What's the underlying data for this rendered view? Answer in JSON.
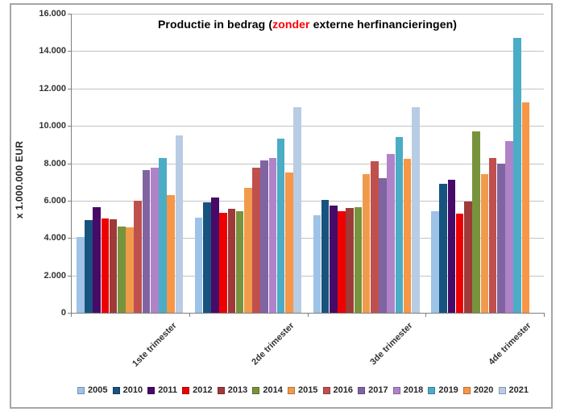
{
  "title": {
    "prefix": "Productie in bedrag (",
    "highlight": "zonder",
    "suffix": " externe herfinancieringen)",
    "highlight_color": "#ff0000"
  },
  "y_axis": {
    "label": "x 1.000.000  EUR",
    "tick_labels": [
      "16.000",
      "14.000",
      "12.000",
      "10.000",
      "8.000",
      "6.000",
      "4.000",
      "2.000",
      "0"
    ],
    "max": 16000,
    "min": 0,
    "step": 2000
  },
  "chart_data": {
    "type": "bar",
    "title": "Productie in bedrag (zonder externe herfinancieringen)",
    "ylabel": "x 1.000.000 EUR",
    "ylim": [
      0,
      16000
    ],
    "grid": true,
    "legend_position": "bottom",
    "categories": [
      "1ste trimester",
      "2de trimester",
      "3de trimester",
      "4de trimester"
    ],
    "series": [
      {
        "name": "2005",
        "color": "#9dc3e6",
        "values": [
          4050,
          5100,
          5200,
          5450
        ]
      },
      {
        "name": "2010",
        "color": "#17537f",
        "values": [
          4950,
          5900,
          6050,
          6900
        ]
      },
      {
        "name": "2011",
        "color": "#470a68",
        "values": [
          5650,
          6150,
          5750,
          7100
        ]
      },
      {
        "name": "2012",
        "color": "#ee0000",
        "values": [
          5050,
          5350,
          5450,
          5300
        ]
      },
      {
        "name": "2013",
        "color": "#9e3a38",
        "values": [
          5000,
          5550,
          5600,
          5950
        ]
      },
      {
        "name": "2014",
        "color": "#77933c",
        "values": [
          4600,
          5450,
          5650,
          9700
        ]
      },
      {
        "name": "2015",
        "color": "#f09b4c",
        "values": [
          4550,
          6700,
          7400,
          7400
        ]
      },
      {
        "name": "2016",
        "color": "#c0504d",
        "values": [
          6000,
          7750,
          8100,
          8300
        ]
      },
      {
        "name": "2017",
        "color": "#8064a2",
        "values": [
          7650,
          8150,
          7200,
          8000
        ]
      },
      {
        "name": "2018",
        "color": "#b083c9",
        "values": [
          7750,
          8300,
          8500,
          9200
        ]
      },
      {
        "name": "2019",
        "color": "#4bacc6",
        "values": [
          8300,
          9300,
          9400,
          14700
        ]
      },
      {
        "name": "2020",
        "color": "#f79646",
        "values": [
          6300,
          7500,
          8250,
          11250
        ]
      },
      {
        "name": "2021",
        "color": "#b8cce4",
        "values": [
          9500,
          11000,
          11000,
          null
        ]
      }
    ]
  }
}
